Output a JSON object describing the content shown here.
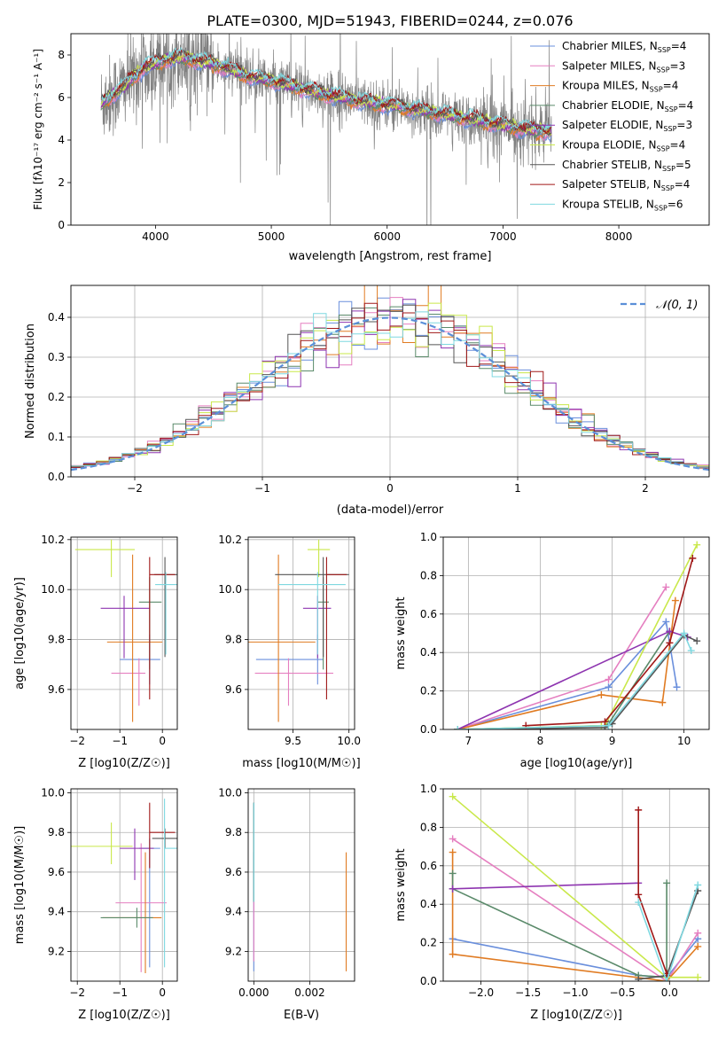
{
  "figure": {
    "title": "PLATE=0300, MJD=51943, FIBERID=0244, z=0.076"
  },
  "colors": {
    "Chabrier MILES": "#6a8fdc",
    "Salpeter MILES": "#e57fc0",
    "Kroupa MILES": "#e07b22",
    "Chabrier ELODIE": "#5a8a6a",
    "Salpeter ELODIE": "#8e35b0",
    "Kroupa ELODIE": "#c9e84a",
    "Chabrier STELIB": "#555555",
    "Salpeter STELIB": "#a01818",
    "Kroupa STELIB": "#7fd8e0",
    "data": "#808080",
    "normal": "#5b8fd8",
    "grid": "#b0b0b0"
  },
  "chart_data": [
    {
      "id": "spectrum",
      "type": "line",
      "xlabel": "wavelength [Angstrom, rest frame]",
      "ylabel": "Flux [f_λ10^-17 erg cm^-2 s^-1 A^-1]",
      "xlim": [
        3270,
        8780
      ],
      "ylim": [
        0,
        9
      ],
      "xticks": [
        4000,
        5000,
        6000,
        7000,
        8000
      ],
      "yticks": [
        0,
        2,
        4,
        6,
        8
      ],
      "grid": false,
      "legend_position": "top-right",
      "legend": [
        {
          "label": "Chabrier MILES, N",
          "sub": "SSP",
          "suffix": "=4"
        },
        {
          "label": "Salpeter MILES, N",
          "sub": "SSP",
          "suffix": "=3"
        },
        {
          "label": "Kroupa MILES, N",
          "sub": "SSP",
          "suffix": "=4"
        },
        {
          "label": "Chabrier ELODIE, N",
          "sub": "SSP",
          "suffix": "=4"
        },
        {
          "label": "Salpeter ELODIE, N",
          "sub": "SSP",
          "suffix": "=3"
        },
        {
          "label": "Kroupa ELODIE, N",
          "sub": "SSP",
          "suffix": "=4"
        },
        {
          "label": "Chabrier STELIB, N",
          "sub": "SSP",
          "suffix": "=5"
        },
        {
          "label": "Salpeter STELIB, N",
          "sub": "SSP",
          "suffix": "=4"
        },
        {
          "label": "Kroupa STELIB, N",
          "sub": "SSP",
          "suffix": "=6"
        }
      ],
      "data_range": [
        3530,
        7420
      ],
      "model_profile": {
        "x": [
          3530,
          3600,
          3700,
          3800,
          3900,
          4000,
          4100,
          4200,
          4400,
          4600,
          4800,
          5000,
          5200,
          5500,
          5800,
          6100,
          6400,
          6700,
          7000,
          7200,
          7420
        ],
        "y": [
          5.7,
          6.0,
          6.4,
          6.9,
          7.4,
          7.6,
          7.8,
          7.9,
          7.7,
          7.4,
          7.0,
          6.8,
          6.5,
          6.1,
          5.8,
          5.6,
          5.3,
          5.0,
          4.7,
          4.5,
          4.4
        ]
      }
    },
    {
      "id": "residuals",
      "type": "line",
      "xlabel": "(data-model)/error",
      "ylabel": "Normed distribution",
      "xlim": [
        -2.5,
        2.5
      ],
      "ylim": [
        0,
        0.48
      ],
      "xticks": [
        -2,
        -1,
        0,
        1,
        2
      ],
      "xticklabels": [
        "−2",
        "−1",
        "0",
        "1",
        "2"
      ],
      "yticks": [
        0,
        0.1,
        0.2,
        0.3,
        0.4
      ],
      "yticklabels": [
        "0.0",
        "0.1",
        "0.2",
        "0.3",
        "0.4"
      ],
      "grid": true,
      "legend_label": "𝒩(0, 1)",
      "legend_position": "top-right",
      "bins": 50,
      "bin_range": [
        -2.5,
        2.5
      ]
    },
    {
      "id": "age-vs-Z",
      "type": "scatter",
      "xlabel": "Z [log10(Z/Z☉)]",
      "ylabel": "age [log10(age/yr)]",
      "xlim": [
        -2.15,
        0.35
      ],
      "ylim": [
        9.44,
        10.21
      ],
      "xticks": [
        -2,
        -1,
        0
      ],
      "xticklabels": [
        "−2",
        "−1",
        "0"
      ],
      "yticks": [
        9.6,
        9.8,
        10.0,
        10.2
      ],
      "yticklabels": [
        "9.6",
        "9.8",
        "10.0",
        "10.2"
      ],
      "grid": true,
      "points": [
        {
          "model": "Chabrier MILES",
          "x": -0.3,
          "xerr": [
            0.7,
            0.25
          ],
          "y": 9.72,
          "yerr": [
            0.1,
            0.1
          ]
        },
        {
          "model": "Salpeter MILES",
          "x": -0.55,
          "xerr": [
            0.65,
            0.15
          ],
          "y": 9.665,
          "yerr": [
            0.13,
            0.06
          ]
        },
        {
          "model": "Kroupa MILES",
          "x": -0.7,
          "xerr": [
            0.6,
            0.7
          ],
          "y": 9.79,
          "yerr": [
            0.32,
            0.35
          ]
        },
        {
          "model": "Chabrier ELODIE",
          "x": -0.3,
          "xerr": [
            0.25,
            0.28
          ],
          "y": 9.95,
          "yerr": [
            0.27,
            0.1
          ]
        },
        {
          "model": "Salpeter ELODIE",
          "x": -0.9,
          "xerr": [
            0.55,
            0.6
          ],
          "y": 9.925,
          "yerr": [
            0.2,
            0.05
          ]
        },
        {
          "model": "Kroupa ELODIE",
          "x": -1.2,
          "xerr": [
            0.85,
            0.55
          ],
          "y": 10.16,
          "yerr": [
            0.11,
            0.04
          ]
        },
        {
          "model": "Chabrier STELIB",
          "x": 0.06,
          "xerr": [
            0.25,
            0.28
          ],
          "y": 10.06,
          "yerr": [
            0.33,
            0.07
          ]
        },
        {
          "model": "Salpeter STELIB",
          "x": -0.3,
          "xerr": [
            0.0,
            0.6
          ],
          "y": 10.06,
          "yerr": [
            0.5,
            0.07
          ]
        },
        {
          "model": "Kroupa STELIB",
          "x": 0.08,
          "xerr": [
            0.25,
            0.28
          ],
          "y": 10.02,
          "yerr": [
            0.28,
            0.05
          ]
        }
      ]
    },
    {
      "id": "age-vs-mass",
      "type": "scatter",
      "xlabel": "mass [log10(M/M☉)]",
      "ylabel": "",
      "xlim": [
        9.1,
        10.05
      ],
      "ylim": [
        9.44,
        10.21
      ],
      "xticks": [
        9.5,
        10.0
      ],
      "xticklabels": [
        "9.5",
        "10.0"
      ],
      "yticks": [
        9.6,
        9.8,
        10.0,
        10.2
      ],
      "yticklabels": [
        "9.6",
        "9.8",
        "10.0",
        "10.2"
      ],
      "grid": true,
      "points": [
        {
          "model": "Chabrier MILES",
          "x": 9.72,
          "xerr": [
            0.55,
            0.05
          ],
          "y": 9.72,
          "yerr": [
            0.1,
            0.1
          ]
        },
        {
          "model": "Salpeter MILES",
          "x": 9.46,
          "xerr": [
            0.3,
            0.4
          ],
          "y": 9.665,
          "yerr": [
            0.13,
            0.06
          ]
        },
        {
          "model": "Kroupa MILES",
          "x": 9.37,
          "xerr": [
            0.55,
            0.33
          ],
          "y": 9.79,
          "yerr": [
            0.32,
            0.35
          ]
        },
        {
          "model": "Chabrier ELODIE",
          "x": 9.77,
          "xerr": [
            0.05,
            0.05
          ],
          "y": 9.95,
          "yerr": [
            0.27,
            0.1
          ]
        },
        {
          "model": "Salpeter ELODIE",
          "x": 9.72,
          "xerr": [
            0.13,
            0.12
          ],
          "y": 9.925,
          "yerr": [
            0.2,
            0.05
          ]
        },
        {
          "model": "Kroupa ELODIE",
          "x": 9.73,
          "xerr": [
            0.1,
            0.1
          ],
          "y": 10.16,
          "yerr": [
            0.11,
            0.04
          ]
        },
        {
          "model": "Chabrier STELIB",
          "x": 9.77,
          "xerr": [
            0.43,
            0.23
          ],
          "y": 10.06,
          "yerr": [
            0.33,
            0.07
          ]
        },
        {
          "model": "Salpeter STELIB",
          "x": 9.8,
          "xerr": [
            0.0,
            0.18
          ],
          "y": 10.06,
          "yerr": [
            0.5,
            0.07
          ]
        },
        {
          "model": "Kroupa STELIB",
          "x": 9.72,
          "xerr": [
            0.35,
            0.25
          ],
          "y": 10.02,
          "yerr": [
            0.28,
            0.05
          ]
        }
      ]
    },
    {
      "id": "mass-weight-vs-age",
      "type": "line",
      "xlabel": "age [log10(age/yr)]",
      "ylabel": "mass weight",
      "xlim": [
        6.65,
        10.35
      ],
      "ylim": [
        0,
        1
      ],
      "xticks": [
        7,
        8,
        9,
        10
      ],
      "yticks": [
        0,
        0.2,
        0.4,
        0.6,
        0.8,
        1.0
      ],
      "yticklabels": [
        "0.0",
        "0.2",
        "0.4",
        "0.6",
        "0.8",
        "1.0"
      ],
      "grid": true,
      "series": [
        {
          "model": "Chabrier MILES",
          "x": [
            6.85,
            8.95,
            9.75,
            9.9
          ],
          "y": [
            0.0,
            0.22,
            0.56,
            0.22
          ]
        },
        {
          "model": "Salpeter MILES",
          "x": [
            6.85,
            8.95,
            9.75
          ],
          "y": [
            0.0,
            0.26,
            0.74
          ]
        },
        {
          "model": "Kroupa MILES",
          "x": [
            6.85,
            8.85,
            9.7,
            9.88
          ],
          "y": [
            0.0,
            0.18,
            0.14,
            0.67
          ]
        },
        {
          "model": "Chabrier ELODIE",
          "x": [
            6.85,
            8.9,
            8.95,
            9.8
          ],
          "y": [
            0.0,
            0.02,
            0.03,
            0.51
          ]
        },
        {
          "model": "Salpeter ELODIE",
          "x": [
            6.85,
            9.8,
            10.05
          ],
          "y": [
            0.0,
            0.51,
            0.48
          ]
        },
        {
          "model": "Kroupa ELODIE",
          "x": [
            6.85,
            8.85,
            8.9,
            10.18
          ],
          "y": [
            0.0,
            0.02,
            0.02,
            0.96
          ]
        },
        {
          "model": "Chabrier STELIB",
          "x": [
            6.85,
            8.9,
            9.0,
            10.0,
            10.18
          ],
          "y": [
            0.0,
            0.01,
            0.03,
            0.49,
            0.46
          ]
        },
        {
          "model": "Salpeter STELIB",
          "x": [
            7.8,
            8.9,
            9.8,
            10.12
          ],
          "y": [
            0.02,
            0.04,
            0.45,
            0.89
          ]
        },
        {
          "model": "Kroupa STELIB",
          "x": [
            6.85,
            8.95,
            10.0,
            10.1
          ],
          "y": [
            0.0,
            0.02,
            0.5,
            0.41
          ]
        }
      ]
    },
    {
      "id": "mass-vs-Z",
      "type": "scatter",
      "xlabel": "Z [log10(Z/Z☉)]",
      "ylabel": "mass [log10(M/M☉)]",
      "xlim": [
        -2.15,
        0.35
      ],
      "ylim": [
        9.05,
        10.02
      ],
      "xticks": [
        -2,
        -1,
        0
      ],
      "xticklabels": [
        "−2",
        "−1",
        "0"
      ],
      "yticks": [
        9.2,
        9.4,
        9.6,
        9.8,
        10.0
      ],
      "yticklabels": [
        "9.2",
        "9.4",
        "9.6",
        "9.8",
        "10.0"
      ],
      "grid": true,
      "points": [
        {
          "model": "Chabrier MILES",
          "x": -0.3,
          "xerr": [
            0.25,
            0.25
          ],
          "y": 9.72,
          "yerr": [
            0.6,
            0.05
          ]
        },
        {
          "model": "Salpeter MILES",
          "x": -0.5,
          "xerr": [
            0.6,
            0.6
          ],
          "y": 9.445,
          "yerr": [
            0.35,
            0.3
          ]
        },
        {
          "model": "Kroupa MILES",
          "x": -0.4,
          "xerr": [
            1.0,
            0.38
          ],
          "y": 9.37,
          "yerr": [
            0.28,
            0.33
          ]
        },
        {
          "model": "Chabrier ELODIE",
          "x": -0.6,
          "xerr": [
            0.85,
            0.38
          ],
          "y": 9.37,
          "yerr": [
            0.05,
            0.05
          ]
        },
        {
          "model": "Salpeter ELODIE",
          "x": -0.65,
          "xerr": [
            0.35,
            0.45
          ],
          "y": 9.72,
          "yerr": [
            0.16,
            0.1
          ]
        },
        {
          "model": "Kroupa ELODIE",
          "x": -1.2,
          "xerr": [
            0.95,
            0.5
          ],
          "y": 9.73,
          "yerr": [
            0.09,
            0.12
          ]
        },
        {
          "model": "Chabrier STELIB",
          "x": 0.06,
          "xerr": [
            0.3,
            0.3
          ],
          "y": 9.77,
          "yerr": [
            0.05,
            0.05
          ]
        },
        {
          "model": "Salpeter STELIB",
          "x": -0.3,
          "xerr": [
            0.0,
            0.6
          ],
          "y": 9.8,
          "yerr": [
            0.18,
            0.15
          ]
        },
        {
          "model": "Kroupa STELIB",
          "x": 0.05,
          "xerr": [
            0.0,
            0.3
          ],
          "y": 9.72,
          "yerr": [
            0.6,
            0.25
          ]
        }
      ]
    },
    {
      "id": "mass-vs-ebv",
      "type": "scatter",
      "xlabel": "E(B-V)",
      "ylabel": "",
      "xlim": [
        -0.0002,
        0.0036
      ],
      "ylim": [
        9.05,
        10.02
      ],
      "xticks": [
        0.0,
        0.002
      ],
      "xticklabels": [
        "0.000",
        "0.002"
      ],
      "yticks": [
        9.2,
        9.4,
        9.6,
        9.8,
        10.0
      ],
      "yticklabels": [
        "9.2",
        "9.4",
        "9.6",
        "9.8",
        "10.0"
      ],
      "grid": true,
      "points": [
        {
          "model": "Chabrier MILES",
          "x": 0.0,
          "y": 9.4,
          "yerr": [
            0.3,
            0.3
          ]
        },
        {
          "model": "Salpeter MILES",
          "x": 0.0,
          "y": 9.3,
          "yerr": [
            0.15,
            0.2
          ]
        },
        {
          "model": "Kroupa MILES",
          "x": 0.0033,
          "y": 9.4,
          "yerr": [
            0.3,
            0.3
          ]
        },
        {
          "model": "Chabrier ELODIE",
          "x": 0.0,
          "y": 9.7,
          "yerr": [
            0.25,
            0.25
          ]
        },
        {
          "model": "Chabrier STELIB",
          "x": 0.0,
          "y": 9.7,
          "yerr": [
            0.25,
            0.25
          ]
        },
        {
          "model": "Kroupa STELIB",
          "x": 0.0,
          "y": 9.7,
          "yerr": [
            0.25,
            0.25
          ]
        }
      ]
    },
    {
      "id": "mass-weight-vs-Z",
      "type": "line",
      "xlabel": "Z [log10(Z/Z☉)]",
      "ylabel": "mass weight",
      "xlim": [
        -2.4,
        0.42
      ],
      "ylim": [
        0,
        1
      ],
      "xticks": [
        -2.0,
        -1.5,
        -1.0,
        -0.5,
        0.0
      ],
      "xticklabels": [
        "−2.0",
        "−1.5",
        "−1.0",
        "−0.5",
        "0.0"
      ],
      "yticks": [
        0,
        0.2,
        0.4,
        0.6,
        0.8,
        1.0
      ],
      "yticklabels": [
        "0.0",
        "0.2",
        "0.4",
        "0.6",
        "0.8",
        "1.0"
      ],
      "grid": true,
      "series": [
        {
          "model": "Chabrier MILES",
          "x": [
            -2.3,
            -0.33,
            -0.03,
            0.3
          ],
          "y": [
            0.22,
            0.03,
            0.02,
            0.22
          ]
        },
        {
          "model": "Salpeter MILES",
          "x": [
            -2.3,
            -0.03,
            0.3
          ],
          "y": [
            0.74,
            0.0,
            0.25
          ]
        },
        {
          "model": "Kroupa MILES",
          "x": [
            -2.3,
            -2.3,
            -0.03,
            0.3
          ],
          "y": [
            0.67,
            0.14,
            0.0,
            0.18
          ]
        },
        {
          "model": "Chabrier ELODIE",
          "x": [
            -2.3,
            -2.3,
            -0.33,
            -0.03,
            -0.03
          ],
          "y": [
            0.56,
            0.48,
            0.03,
            0.02,
            0.51
          ]
        },
        {
          "model": "Salpeter ELODIE",
          "x": [
            -2.3,
            -0.33
          ],
          "y": [
            0.48,
            0.51
          ]
        },
        {
          "model": "Kroupa ELODIE",
          "x": [
            -2.3,
            -0.03,
            0.3
          ],
          "y": [
            0.96,
            0.02,
            0.02
          ]
        },
        {
          "model": "Chabrier STELIB",
          "x": [
            -0.33,
            -0.03,
            0.3
          ],
          "y": [
            0.01,
            0.03,
            0.47
          ]
        },
        {
          "model": "Salpeter STELIB",
          "x": [
            -0.33,
            -0.33,
            -0.03
          ],
          "y": [
            0.89,
            0.45,
            0.04
          ]
        },
        {
          "model": "Kroupa STELIB",
          "x": [
            -0.33,
            -0.03,
            0.3
          ],
          "y": [
            0.41,
            0.0,
            0.5
          ]
        }
      ]
    }
  ]
}
